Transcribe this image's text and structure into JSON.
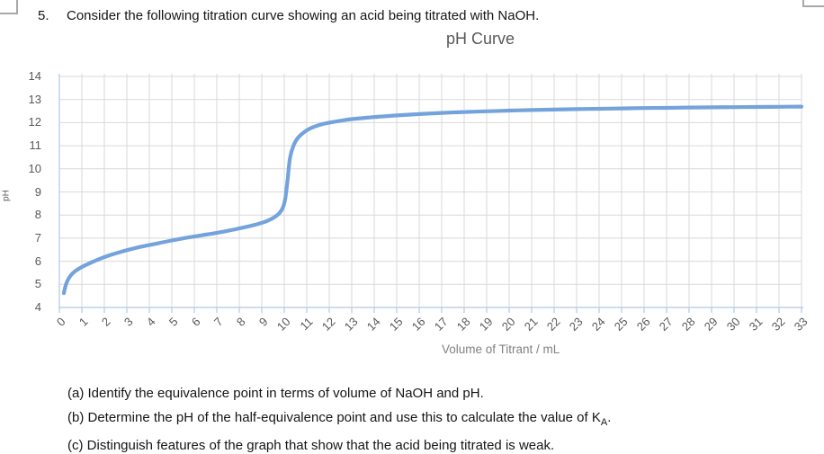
{
  "question": {
    "number": "5.",
    "text": "Consider the following titration curve showing an acid being titrated with NaOH."
  },
  "chart_data": {
    "type": "line",
    "title": "pH Curve",
    "xlabel": "Volume of Titrant / mL",
    "ylabel": "pH",
    "xlim": [
      0,
      33
    ],
    "ylim": [
      4,
      14
    ],
    "grid": true,
    "legend": "none",
    "line_color": "#74a3dc",
    "grid_color": "#d9d9d9",
    "axis_color": "#bdd0e6",
    "xticks": [
      0,
      1,
      2,
      3,
      4,
      5,
      6,
      7,
      8,
      9,
      10,
      11,
      12,
      13,
      14,
      15,
      16,
      17,
      18,
      19,
      20,
      21,
      22,
      23,
      24,
      25,
      26,
      27,
      28,
      29,
      30,
      31,
      32,
      33
    ],
    "yticks": [
      4,
      5,
      6,
      7,
      8,
      9,
      10,
      11,
      12,
      13,
      14
    ],
    "series": [
      {
        "name": "pH",
        "points": [
          [
            0.2,
            4.62
          ],
          [
            0.27,
            4.92
          ],
          [
            0.35,
            5.14
          ],
          [
            0.5,
            5.38
          ],
          [
            0.7,
            5.57
          ],
          [
            1,
            5.75
          ],
          [
            1.5,
            5.98
          ],
          [
            2,
            6.18
          ],
          [
            2.5,
            6.34
          ],
          [
            3,
            6.48
          ],
          [
            3.5,
            6.6
          ],
          [
            4,
            6.7
          ],
          [
            4.5,
            6.8
          ],
          [
            5,
            6.9
          ],
          [
            5.5,
            6.99
          ],
          [
            6,
            7.07
          ],
          [
            6.5,
            7.15
          ],
          [
            7,
            7.23
          ],
          [
            7.5,
            7.32
          ],
          [
            8,
            7.42
          ],
          [
            8.5,
            7.53
          ],
          [
            9,
            7.66
          ],
          [
            9.3,
            7.77
          ],
          [
            9.6,
            7.93
          ],
          [
            9.8,
            8.1
          ],
          [
            9.95,
            8.35
          ],
          [
            10.05,
            8.75
          ],
          [
            10.15,
            9.55
          ],
          [
            10.25,
            10.45
          ],
          [
            10.4,
            10.98
          ],
          [
            10.6,
            11.33
          ],
          [
            10.9,
            11.6
          ],
          [
            11.2,
            11.77
          ],
          [
            11.6,
            11.91
          ],
          [
            12,
            12.0
          ],
          [
            12.5,
            12.08
          ],
          [
            13,
            12.15
          ],
          [
            14,
            12.24
          ],
          [
            15,
            12.31
          ],
          [
            16,
            12.37
          ],
          [
            17,
            12.42
          ],
          [
            18,
            12.46
          ],
          [
            19,
            12.49
          ],
          [
            20,
            12.52
          ],
          [
            21,
            12.545
          ],
          [
            22,
            12.565
          ],
          [
            23,
            12.585
          ],
          [
            24,
            12.6
          ],
          [
            25,
            12.615
          ],
          [
            26,
            12.63
          ],
          [
            27,
            12.64
          ],
          [
            28,
            12.652
          ],
          [
            29,
            12.662
          ],
          [
            30,
            12.67
          ],
          [
            31,
            12.678
          ],
          [
            32,
            12.686
          ],
          [
            33,
            12.692
          ]
        ]
      }
    ],
    "annotations": {
      "equivalence_volume_mL": 10,
      "start_pH": 4.6,
      "final_pH": 12.7
    }
  },
  "tasks": {
    "a": "(a) Identify the equivalence point in terms of volume of NaOH and pH.",
    "b_prefix": "(b) Determine the pH of the half-equivalence point and use this to calculate the value of K",
    "b_sub": "A",
    "b_suffix": ".",
    "c": "(c) Distinguish features of the graph that show that the acid being titrated is weak."
  }
}
